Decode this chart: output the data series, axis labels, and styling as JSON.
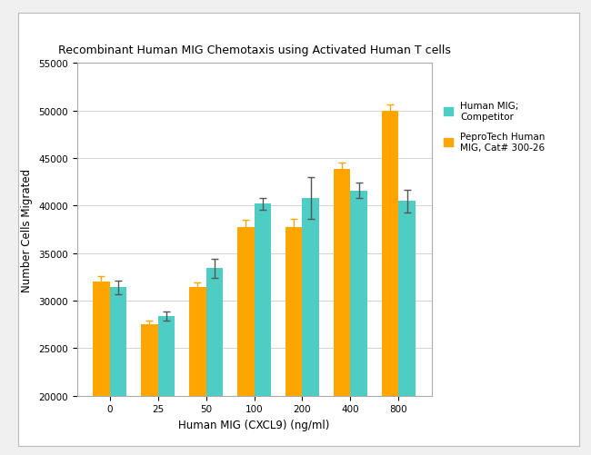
{
  "title": "Recombinant Human MIG Chemotaxis using Activated Human T cells",
  "xlabel": "Human MIG (CXCL9) (ng/ml)",
  "ylabel": "Number Cells Migrated",
  "categories": [
    "0",
    "25",
    "50",
    "100",
    "200",
    "400",
    "800"
  ],
  "competitor_values": [
    31400,
    28400,
    33400,
    40200,
    40800,
    41600,
    40500
  ],
  "peprotech_values": [
    32000,
    27500,
    31400,
    37700,
    37700,
    43900,
    50000
  ],
  "competitor_errors": [
    700,
    500,
    1000,
    600,
    2200,
    800,
    1200
  ],
  "peprotech_errors": [
    600,
    400,
    500,
    800,
    900,
    600,
    600
  ],
  "competitor_color": "#4ECDC4",
  "peprotech_color": "#FFA500",
  "figure_bg_color": "#F0F0F0",
  "box_bg_color": "#FFFFFF",
  "plot_bg_color": "#FFFFFF",
  "ylim": [
    20000,
    55000
  ],
  "yticks": [
    20000,
    25000,
    30000,
    35000,
    40000,
    45000,
    50000,
    55000
  ],
  "legend_label_competitor": "Human MIG;\nCompetitor",
  "legend_label_peprotech": "PeproTech Human\nMIG, Cat# 300-26",
  "title_fontsize": 9,
  "axis_label_fontsize": 8.5,
  "tick_fontsize": 7.5,
  "legend_fontsize": 7.5,
  "bar_width": 0.35,
  "error_color_competitor": "#555555",
  "error_color_peprotech": "#FFA500"
}
